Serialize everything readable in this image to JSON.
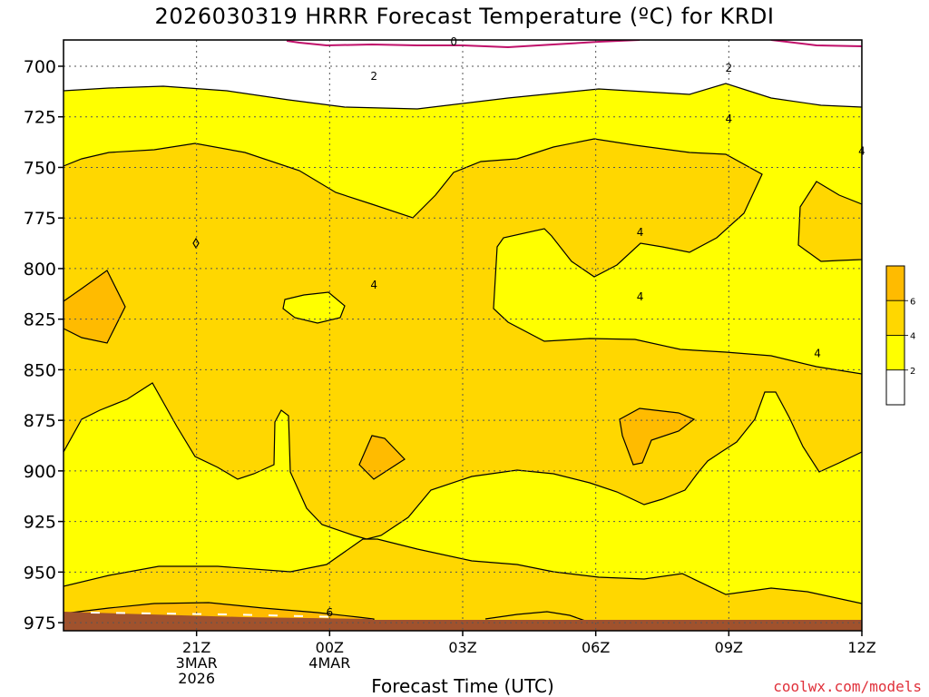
{
  "chart_data": {
    "type": "contour-filled time-height cross section",
    "title": "2026030319 HRRR Forecast Temperature (ºC) for KRDI",
    "xlabel": "Forecast Time (UTC)",
    "ylabel": "",
    "y_axis": {
      "scale": "pressure (reversed)",
      "ticks": [
        700,
        725,
        750,
        775,
        800,
        825,
        850,
        875,
        900,
        925,
        950,
        975
      ],
      "range": [
        687,
        979
      ]
    },
    "x_axis": {
      "range_hours_from_21Z": [
        -3.0,
        15.0
      ],
      "ticks": [
        {
          "hour": 0,
          "line1": "21Z",
          "line2": "3MAR",
          "line3": "2026"
        },
        {
          "hour": 3,
          "line1": "00Z",
          "line2": "4MAR",
          "line3": ""
        },
        {
          "hour": 6,
          "line1": "03Z",
          "line2": "",
          "line3": ""
        },
        {
          "hour": 9,
          "line1": "06Z",
          "line2": "",
          "line3": ""
        },
        {
          "hour": 12,
          "line1": "09Z",
          "line2": "",
          "line3": ""
        },
        {
          "hour": 15,
          "line1": "12Z",
          "line2": "",
          "line3": ""
        }
      ]
    },
    "grid": "dotted",
    "color_levels": [
      {
        "range": "< 2",
        "color": "#ffffff"
      },
      {
        "range": "2-4",
        "color": "#ffff00"
      },
      {
        "range": "4-6",
        "color": "#ffd700"
      },
      {
        "range": "> 6",
        "color": "#ffbb00"
      }
    ],
    "colorbar_labels": [
      "2",
      "4",
      "6"
    ],
    "contour_labels": [
      {
        "value": "0",
        "hour": 5.8,
        "p": 688
      },
      {
        "value": "2",
        "hour": 4.0,
        "p": 705
      },
      {
        "value": "2",
        "hour": 12.0,
        "p": 701
      },
      {
        "value": "4",
        "hour": 12.0,
        "p": 726
      },
      {
        "value": "4",
        "hour": 15.0,
        "p": 742
      },
      {
        "value": "4",
        "hour": 10.0,
        "p": 782
      },
      {
        "value": "4",
        "hour": 4.0,
        "p": 808
      },
      {
        "value": "4",
        "hour": 10.0,
        "p": 814
      },
      {
        "value": "4",
        "hour": 14.0,
        "p": 842
      },
      {
        "value": "6",
        "hour": 3.0,
        "p": 970
      }
    ],
    "frozen_isotherm": "0 °C near 690 hPa",
    "surface_terrain_top_p": 975
  },
  "credit": "coolwx.com/models"
}
